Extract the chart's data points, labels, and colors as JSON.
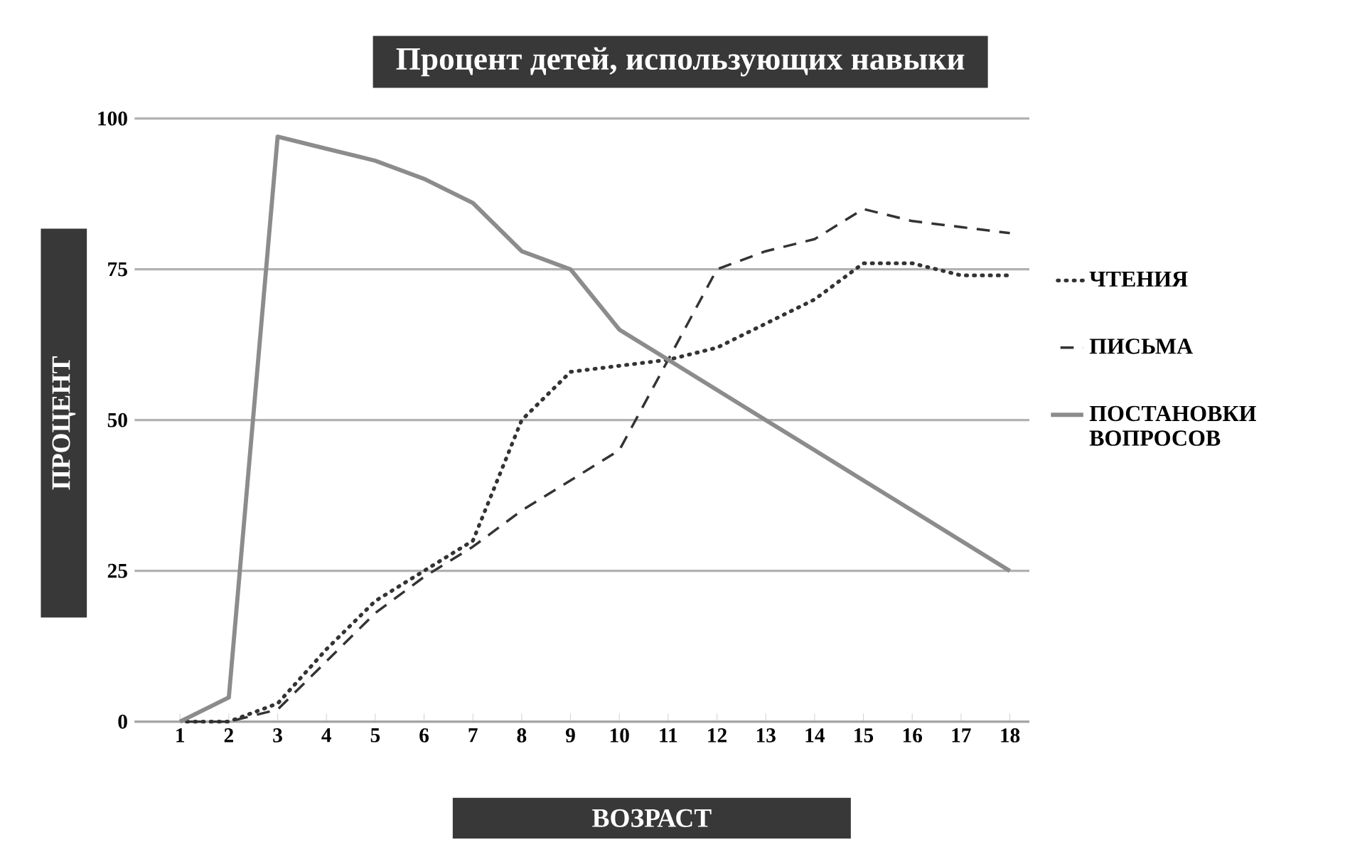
{
  "chart_data": {
    "type": "line",
    "title": "Процент детей, использующих навыки",
    "xlabel": "ВОЗРАСТ",
    "ylabel": "ПРОЦЕНТ",
    "categories": [
      "1",
      "2",
      "3",
      "4",
      "5",
      "6",
      "7",
      "8",
      "9",
      "10",
      "11",
      "12",
      "13",
      "14",
      "15",
      "16",
      "17",
      "18"
    ],
    "series": [
      {
        "name": "ЧТЕНИЯ",
        "color": "#333333",
        "line_style": "dotted",
        "values": [
          0,
          0,
          3,
          12,
          20,
          25,
          30,
          50,
          58,
          59,
          60,
          62,
          66,
          70,
          76,
          76,
          74,
          74
        ]
      },
      {
        "name": "ПИСЬМА",
        "color": "#333333",
        "line_style": "dashed",
        "values": [
          0,
          0,
          2,
          10,
          18,
          24,
          29,
          35,
          40,
          45,
          60,
          75,
          78,
          80,
          85,
          83,
          82,
          81
        ]
      },
      {
        "name": "ПОСТАНОВКИ ВОПРОСОВ",
        "color": "#8c8c8c",
        "line_style": "solid",
        "values": [
          0,
          4,
          97,
          95,
          93,
          90,
          86,
          78,
          75,
          65,
          60,
          55,
          50,
          45,
          40,
          35,
          30,
          25
        ]
      }
    ],
    "ylim": [
      0,
      100
    ],
    "yticks": [
      0,
      25,
      50,
      75,
      100
    ],
    "grid": "y",
    "legend": "right",
    "marker": "none"
  }
}
